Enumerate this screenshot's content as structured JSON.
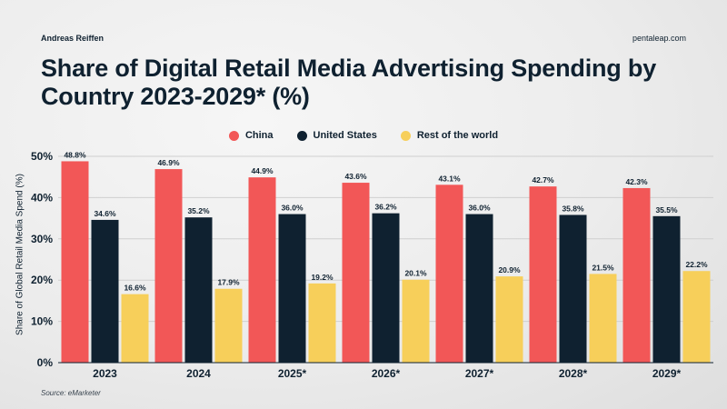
{
  "header": {
    "author": "Andreas Reiffen",
    "site": "pentaleap.com",
    "title": "Share of Digital Retail Media Advertising Spending by Country 2023-2029* (%)"
  },
  "footer": {
    "source": "Source: eMarketer"
  },
  "colors": {
    "china": "#f25757",
    "us": "#0f2130",
    "rest": "#f7cf5a"
  },
  "chart_data": {
    "type": "bar",
    "categories": [
      "2023",
      "2024",
      "2025*",
      "2026*",
      "2027*",
      "2028*",
      "2029*"
    ],
    "series": [
      {
        "name": "China",
        "values": [
          48.8,
          46.9,
          44.9,
          43.6,
          43.1,
          42.7,
          42.3
        ]
      },
      {
        "name": "United States",
        "values": [
          34.6,
          35.2,
          36.0,
          36.2,
          36.0,
          35.8,
          35.5
        ]
      },
      {
        "name": "Rest of the world",
        "values": [
          16.6,
          17.9,
          19.2,
          20.1,
          20.9,
          21.5,
          22.2
        ]
      }
    ],
    "data_labels": [
      [
        "48.8%",
        "46.9%",
        "44.9%",
        "43.6%",
        "43.1%",
        "42.7%",
        "42.3%"
      ],
      [
        "34.6%",
        "35.2%",
        "36.0%",
        "36.2%",
        "36.0%",
        "35.8%",
        "35.5%"
      ],
      [
        "16.6%",
        "17.9%",
        "19.2%",
        "20.1%",
        "20.9%",
        "21.5%",
        "22.2%"
      ]
    ],
    "yticks": [
      "0%",
      "10%",
      "20%",
      "30%",
      "40%",
      "50%"
    ],
    "ylabel": "Share of Global Retail Media Spend (%)",
    "xlabel": "",
    "ylim": [
      0,
      50
    ],
    "legend_position": "top-center",
    "grid": true
  }
}
